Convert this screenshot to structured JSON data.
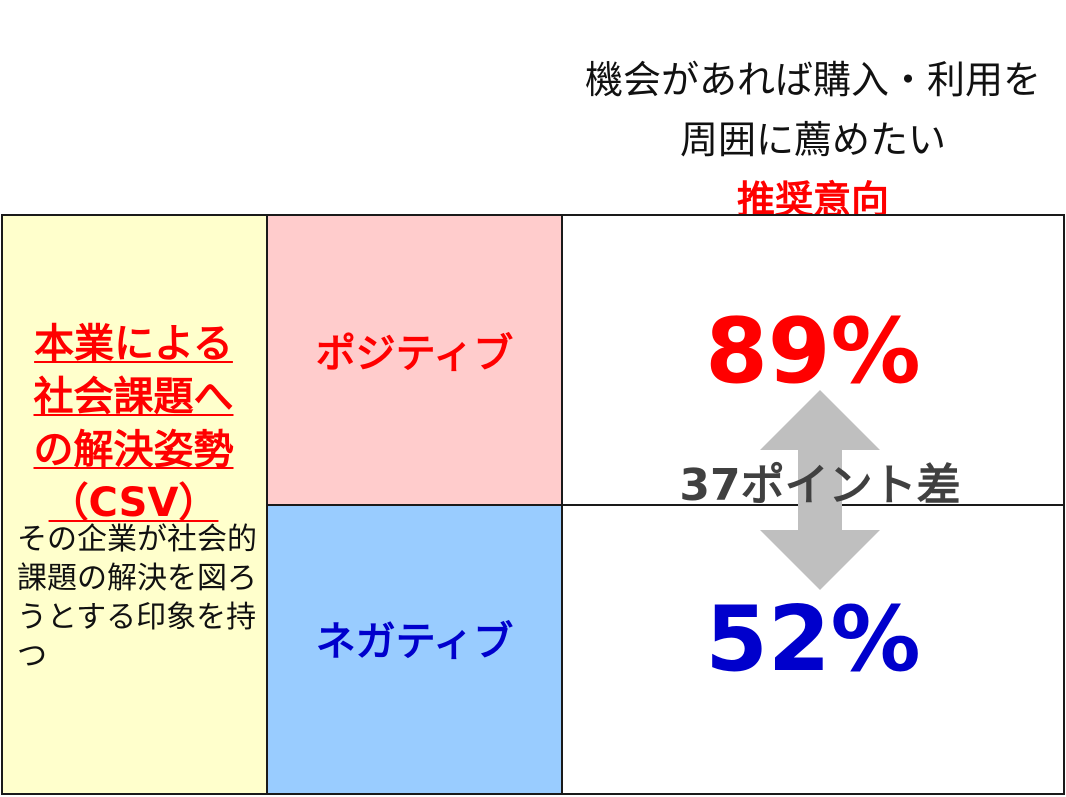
{
  "header": {
    "line1": "機会があれば購入・利用を",
    "line2": "周囲に薦めたい",
    "accent": "推奨意向"
  },
  "left": {
    "title_lines": [
      "本業による",
      "社会課題へ",
      "の解決姿勢",
      "（CSV）"
    ],
    "description": "その企業が社会的課題の解決を図ろうとする印象を持つ"
  },
  "rows": [
    {
      "label": "ポジティブ",
      "value": "89%"
    },
    {
      "label": "ネガティブ",
      "value": "52%"
    }
  ],
  "difference": "37ポイント差",
  "colors": {
    "positive": "#ff0000",
    "negative": "#0000cc",
    "left_bg": "#ffffcc",
    "positive_bg": "#ffcccc",
    "negative_bg": "#99ccff",
    "arrow": "#bfbfbf",
    "difference_text": "#404040"
  }
}
